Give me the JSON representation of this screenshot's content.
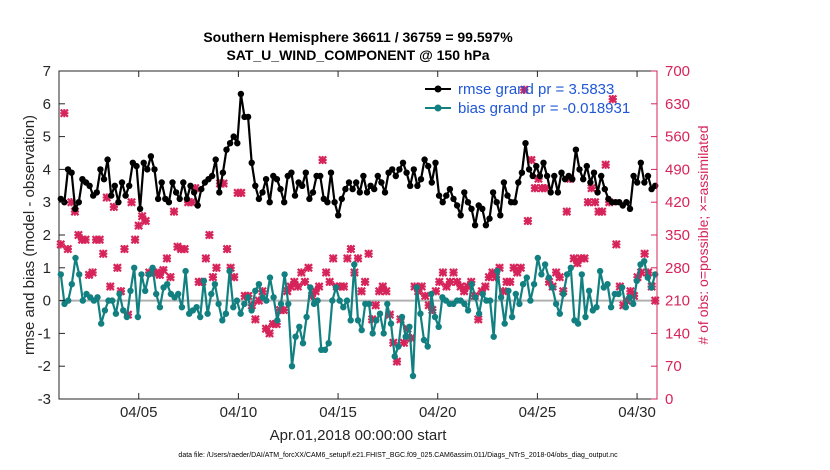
{
  "chart_data": {
    "type": "line",
    "title_line1": "Southern Hemisphere 36611 / 36759 = 99.597%",
    "title_line2": "SAT_U_WIND_COMPONENT @ 150 hPa",
    "xlabel": "Apr.01,2018 00:00:00 start",
    "ylabel_left": "rmse and bias (model - observation)",
    "ylabel_right": "# of obs: o=possible; ×=assimilated",
    "xlim": [
      0,
      30
    ],
    "ylim_left": [
      -3,
      7
    ],
    "ylim_right": [
      0,
      700
    ],
    "x_ticks": [
      {
        "pos": 4,
        "label": "04/05"
      },
      {
        "pos": 9,
        "label": "04/10"
      },
      {
        "pos": 14,
        "label": "04/15"
      },
      {
        "pos": 19,
        "label": "04/20"
      },
      {
        "pos": 24,
        "label": "04/25"
      },
      {
        "pos": 29,
        "label": "04/30"
      }
    ],
    "y_ticks_left": [
      "-3",
      "-2",
      "-1",
      "0",
      "1",
      "2",
      "3",
      "4",
      "5",
      "6",
      "7"
    ],
    "y_ticks_right": [
      "0",
      "70",
      "140",
      "210",
      "280",
      "350",
      "420",
      "490",
      "560",
      "630",
      "700"
    ],
    "legend": [
      "rmse grand pr = 3.5833",
      "bias grand pr = -0.018931"
    ],
    "footer": "data file: /Users/raeder/DAI/ATM_forcXX/CAM6_setup/f.e21.FHIST_BGC.f09_025.CAM6assim.011/Diags_NTrS_2018-04/obs_diag_output.nc",
    "colors": {
      "rmse": "#000000",
      "bias": "#128080",
      "obs": "#d6245a",
      "legend_text": "#1f57d6",
      "zero_line": "#b0b0b0"
    },
    "series": [
      {
        "name": "rmse",
        "axis": "left",
        "values": [
          3.1,
          3.0,
          4.0,
          3.9,
          2.8,
          3.0,
          3.7,
          3.6,
          3.5,
          3.2,
          3.3,
          4.0,
          3.7,
          4.3,
          3.2,
          3.5,
          3.0,
          3.6,
          3.2,
          3.5,
          4.2,
          4.1,
          2.8,
          4.2,
          4.0,
          4.4,
          4.0,
          3.1,
          3.6,
          3.1,
          3.0,
          3.6,
          3.3,
          3.1,
          3.6,
          3.1,
          3.5,
          3.3,
          2.9,
          3.4,
          3.6,
          3.7,
          3.8,
          4.3,
          3.3,
          3.9,
          4.6,
          4.8,
          5.0,
          4.8,
          6.3,
          5.6,
          5.6,
          4.2,
          3.5,
          3.1,
          3.3,
          3.7,
          3.0,
          3.8,
          3.7,
          3.4,
          3.0,
          3.8,
          3.9,
          3.2,
          3.6,
          3.5,
          3.9,
          3.1,
          3.3,
          3.8,
          3.8,
          3.1,
          3.0,
          3.9,
          3.0,
          2.6,
          3.1,
          3.4,
          3.6,
          3.4,
          3.6,
          3.3,
          3.8,
          3.3,
          3.5,
          3.4,
          3.8,
          3.6,
          3.3,
          3.9,
          4.0,
          3.8,
          4.0,
          4.2,
          3.9,
          3.5,
          4.0,
          3.5,
          3.7,
          4.3,
          4.1,
          3.6,
          4.2,
          3.2,
          3.0,
          3.2,
          3.4,
          3.1,
          2.9,
          2.6,
          3.3,
          3.0,
          2.8,
          2.3,
          2.9,
          2.8,
          2.3,
          2.5,
          3.3,
          3.0,
          2.6,
          3.6,
          3.2,
          3.0,
          3.0,
          3.6,
          3.9,
          4.8,
          4.0,
          3.8,
          4.1,
          3.8,
          4.2,
          3.8,
          3.3,
          3.8,
          3.3,
          3.9,
          3.7,
          3.8,
          3.7,
          4.6,
          4.0,
          3.7,
          4.1,
          3.6,
          3.9,
          3.3,
          3.8,
          3.4,
          3.1,
          3.0,
          3.0,
          3.0,
          2.9,
          3.0,
          2.8,
          3.8,
          3.6,
          4.2,
          3.6,
          3.8,
          3.4,
          3.5
        ]
      },
      {
        "name": "bias",
        "axis": "left",
        "values": [
          0.8,
          -0.1,
          0.0,
          0.5,
          1.3,
          0.8,
          0.0,
          0.2,
          0.1,
          0.0,
          0.1,
          -0.7,
          -0.3,
          0.0,
          0.0,
          -0.4,
          0.2,
          -0.3,
          -0.5,
          0.3,
          1.0,
          -0.5,
          0.8,
          0.3,
          0.8,
          1.0,
          0.2,
          -0.2,
          0.4,
          0.5,
          0.2,
          0.1,
          0.2,
          -0.2,
          0.9,
          -0.4,
          -0.3,
          -0.2,
          -0.5,
          0.6,
          -0.4,
          0.2,
          0.5,
          -0.1,
          -0.6,
          -0.4,
          0.9,
          -0.2,
          0.0,
          -0.4,
          -0.1,
          0.1,
          -0.3,
          0.3,
          0.5,
          0.1,
          0.0,
          0.7,
          0.1,
          -0.6,
          -0.1,
          0.8,
          -0.1,
          -2.0,
          -1.1,
          -0.8,
          -1.3,
          -0.5,
          0.4,
          -0.1,
          0.0,
          -1.5,
          -1.5,
          -1.3,
          0.0,
          0.4,
          0.0,
          -0.2,
          0.0,
          -0.6,
          1.1,
          -0.6,
          -0.9,
          -0.1,
          -0.1,
          -1.0,
          -0.6,
          -0.4,
          -1.0,
          -0.1,
          -0.7,
          -1.7,
          -1.4,
          -0.5,
          -1.1,
          -0.8,
          -2.3,
          0.4,
          -0.4,
          -1.2,
          -1.4,
          0.2,
          -0.5,
          -0.8,
          0.1,
          0.0,
          -0.1,
          -0.1,
          0.0,
          0.0,
          -0.1,
          -0.3,
          0.5,
          0.1,
          -0.4,
          0.2,
          0.0,
          0.0,
          -1.1,
          0.9,
          0.1,
          -0.7,
          0.3,
          -0.5,
          0.2,
          -0.1,
          0.5,
          0.7,
          0.0,
          0.5,
          1.3,
          0.8,
          1.1,
          0.7,
          0.4,
          -0.1,
          -0.4,
          0.2,
          0.8,
          1.0,
          -0.6,
          -0.7,
          0.8,
          -0.5,
          0.3,
          -0.3,
          -0.2,
          0.9,
          0.4,
          0.5,
          -0.2,
          0.2,
          0.2,
          0.4,
          -0.2,
          0.1,
          -0.1,
          0.6,
          1.1,
          1.2,
          0.7,
          0.4,
          0.8
        ]
      },
      {
        "name": "obs_possible",
        "axis": "right",
        "values": [
          330,
          610,
          320,
          420,
          400,
          350,
          340,
          340,
          265,
          270,
          340,
          340,
          310,
          430,
          240,
          410,
          280,
          230,
          320,
          180,
          420,
          340,
          370,
          390,
          380,
          270,
          270,
          270,
          265,
          275,
          300,
          260,
          400,
          325,
          320,
          320,
          420,
          420,
          450,
          250,
          250,
          300,
          350,
          260,
          280,
          460,
          460,
          320,
          280,
          260,
          440,
          440,
          220,
          220,
          200,
          170,
          210,
          230,
          150,
          140,
          160,
          160,
          190,
          190,
          230,
          240,
          250,
          240,
          270,
          250,
          280,
          220,
          230,
          240,
          510,
          270,
          250,
          300,
          240,
          240,
          240,
          300,
          320,
          270,
          300,
          230,
          250,
          310,
          170,
          200,
          230,
          240,
          230,
          180,
          120,
          80,
          170,
          120,
          150,
          130,
          240,
          230,
          240,
          220,
          200,
          190,
          230,
          250,
          270,
          240,
          250,
          270,
          250,
          240,
          230,
          240,
          250,
          220,
          170,
          230,
          240,
          260,
          270,
          260,
          280,
          230,
          250,
          250,
          280,
          270,
          280,
          660,
          380,
          510,
          450,
          470,
          450,
          450,
          250,
          240,
          270,
          260,
          230,
          400,
          470,
          300,
          290,
          300,
          300,
          420,
          450,
          420,
          400,
          400,
          500,
          420,
          640,
          330,
          240,
          200,
          210,
          230,
          220,
          260,
          270,
          310,
          270,
          240,
          210
        ]
      }
    ]
  }
}
